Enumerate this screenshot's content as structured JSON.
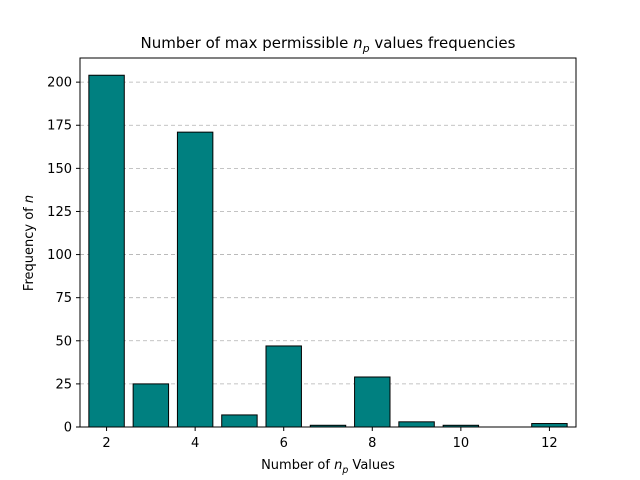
{
  "chart_data": {
    "type": "bar",
    "title": "Number of max permissible n_p values frequencies",
    "title_parts": {
      "prefix": "Number of max permissible ",
      "var": "n",
      "sub": "p",
      "suffix": " values frequencies"
    },
    "xlabel": "Number of n_p Values",
    "xlabel_parts": {
      "prefix": "Number of ",
      "var": "n",
      "sub": "p",
      "suffix": " Values"
    },
    "ylabel": "Frequency of n",
    "ylabel_parts": {
      "prefix": "Frequency of ",
      "var": "n"
    },
    "x": [
      2,
      3,
      4,
      5,
      6,
      7,
      8,
      9,
      10,
      11,
      12
    ],
    "values": [
      204,
      25,
      171,
      7,
      47,
      1,
      29,
      3,
      1,
      0,
      2
    ],
    "xlim": [
      1.4,
      12.6
    ],
    "ylim": [
      0,
      214
    ],
    "xticks": [
      "2",
      "4",
      "6",
      "8",
      "10",
      "12"
    ],
    "yticks": [
      "0",
      "25",
      "50",
      "75",
      "100",
      "125",
      "150",
      "175",
      "200"
    ],
    "grid": "y-dashed",
    "bar_color": "#008080",
    "edge_color": "#000000"
  }
}
